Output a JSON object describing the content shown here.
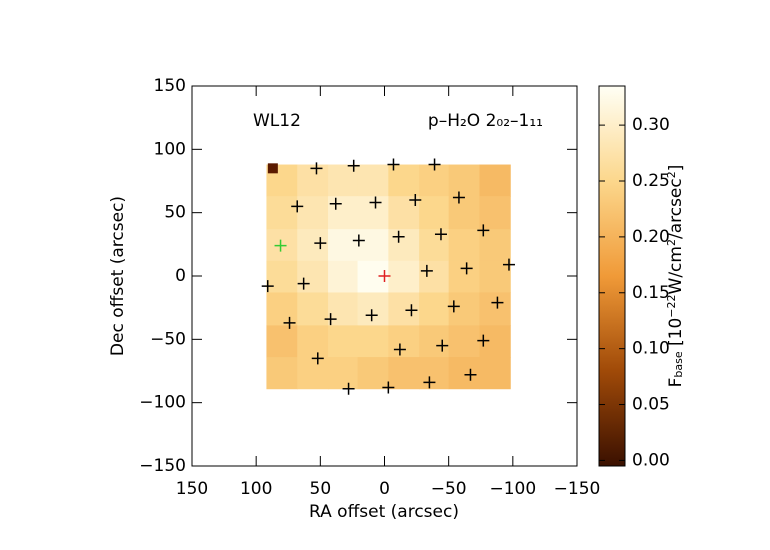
{
  "chart_data": {
    "type": "heatmap",
    "title": "WL12",
    "annotation": "p–H₂O 2₀₂–1₁₁",
    "xlabel": "RA offset (arcsec)",
    "ylabel": "Dec offset (arcsec)",
    "xlim": [
      150,
      -150
    ],
    "ylim": [
      -150,
      150
    ],
    "xticks": [
      150,
      100,
      50,
      0,
      {
        "value": -50,
        "label": "−50"
      },
      {
        "value": -100,
        "label": "−100"
      },
      {
        "value": -150,
        "label": "−150"
      }
    ],
    "yticks": [
      {
        "value": -150,
        "label": "−150"
      },
      {
        "value": -100,
        "label": "−100"
      },
      {
        "value": -50,
        "label": "−50"
      },
      0,
      50,
      100,
      150
    ],
    "x_edges": [
      92,
      68,
      44,
      21,
      -3,
      -27,
      -50,
      -74,
      -98
    ],
    "y_edges": [
      88,
      63,
      37,
      12,
      -13,
      -39,
      -64,
      -89
    ],
    "z": [
      [
        0.25,
        0.27,
        0.28,
        0.28,
        0.25,
        0.24,
        0.23,
        0.21
      ],
      [
        0.26,
        0.28,
        0.3,
        0.3,
        0.27,
        0.25,
        0.23,
        0.22
      ],
      [
        0.27,
        0.29,
        0.32,
        0.32,
        0.29,
        0.26,
        0.24,
        0.23
      ],
      [
        0.26,
        0.28,
        0.31,
        0.33,
        0.3,
        0.27,
        0.24,
        0.23
      ],
      [
        0.24,
        0.26,
        0.28,
        0.29,
        0.27,
        0.25,
        0.23,
        0.22
      ],
      [
        0.22,
        0.24,
        0.25,
        0.25,
        0.24,
        0.23,
        0.22,
        0.21
      ],
      [
        0.23,
        0.24,
        0.24,
        0.23,
        0.22,
        0.22,
        0.21,
        0.21
      ]
    ],
    "colormap": [
      "#3a1000",
      "#a04a08",
      "#f09a38",
      "#fcd78c",
      "#fffff5"
    ],
    "zlim": [
      -0.005,
      0.335
    ],
    "zticks": [
      {
        "value": 0,
        "label": "0.00"
      },
      {
        "value": 0.05,
        "label": "0.05"
      },
      {
        "value": 0.1,
        "label": "0.10"
      },
      {
        "value": 0.15,
        "label": "0.15"
      },
      {
        "value": 0.2,
        "label": "0.20"
      },
      {
        "value": 0.25,
        "label": "0.25"
      },
      {
        "value": 0.3,
        "label": "0.30"
      }
    ],
    "colorbar_label": [
      {
        "text": "F"
      },
      {
        "text": "base",
        "shift": "sub"
      },
      {
        "text": " [10"
      },
      {
        "text": "−22",
        "shift": "super"
      },
      {
        "text": "W/cm"
      },
      {
        "text": "2",
        "shift": "super"
      },
      {
        "text": "/arcsec"
      },
      {
        "text": "2",
        "shift": "super"
      },
      {
        "text": "]"
      }
    ],
    "series": [
      {
        "color": "#000000",
        "marker": "plus",
        "x": [
          53,
          24,
          -7,
          -39,
          68,
          38,
          7,
          -24,
          -58,
          50,
          20,
          -11,
          -44,
          -77,
          -97,
          91,
          63,
          -33,
          -64,
          74,
          42,
          10,
          -21,
          -54,
          -88,
          52,
          -12,
          -45,
          -77,
          28,
          -3,
          -35,
          -67
        ],
        "values": [
          85,
          87,
          88,
          88,
          55,
          57,
          58,
          60,
          62,
          26,
          28,
          31,
          33,
          36,
          9,
          -8,
          -6,
          4,
          6,
          -37,
          -34,
          -31,
          -27,
          -24,
          -21,
          -65,
          -58,
          -55,
          -51,
          -89,
          -88,
          -84,
          -78
        ]
      },
      {
        "color": "#33cc33",
        "marker": "plus",
        "x": [
          81
        ],
        "values": [
          24
        ]
      },
      {
        "color": "#e02020",
        "marker": "plus",
        "x": [
          0
        ],
        "values": [
          0
        ]
      },
      {
        "color": "#5a1a00",
        "marker": "square",
        "x": [
          87
        ],
        "values": [
          85
        ]
      }
    ]
  }
}
